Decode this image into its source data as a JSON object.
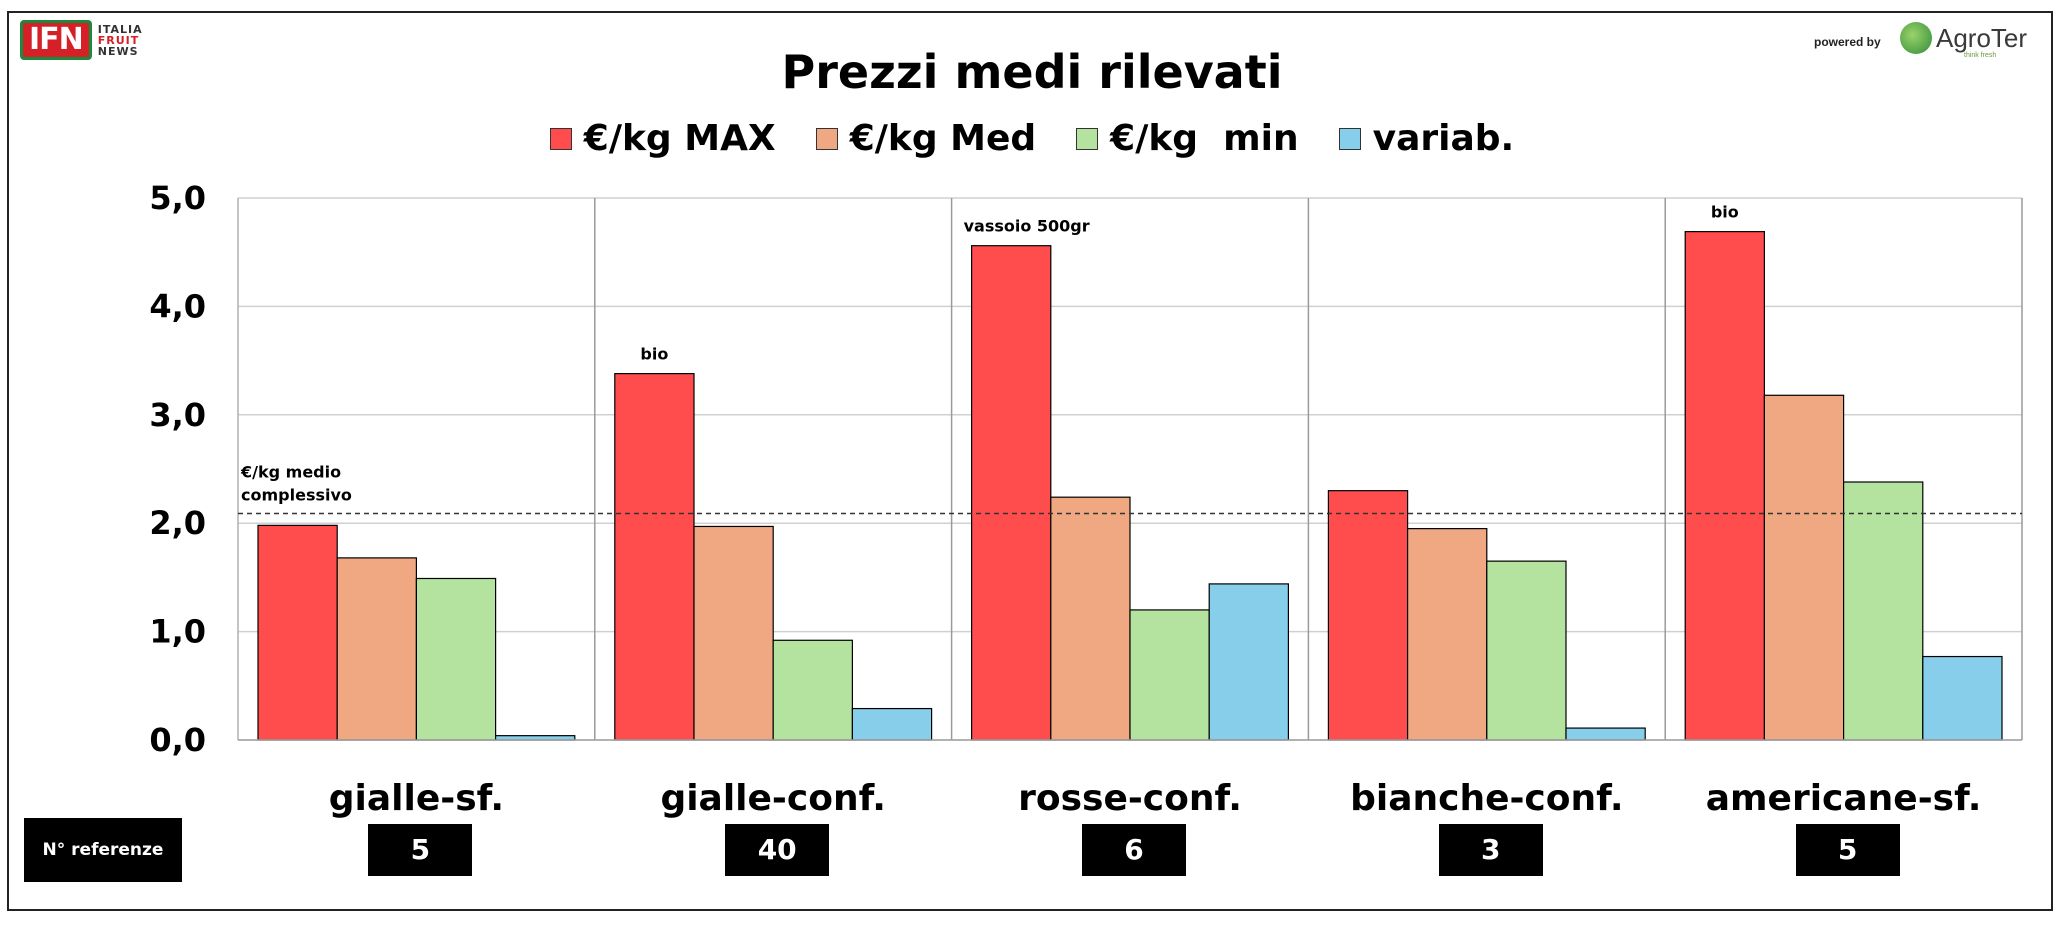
{
  "header": {
    "logo_ifn": "IFN",
    "logo_ifn_lines": [
      "ITALIA",
      "FRUIT",
      "NEWS"
    ],
    "powered_by": "powered by",
    "logo_agroter": "AgroTer",
    "logo_agroter_tagline": "think fresh"
  },
  "colors": {
    "max": "#ff4d4d",
    "med": "#f0a882",
    "min": "#b3e39e",
    "variab": "#87ceeb"
  },
  "chart_data": {
    "type": "bar",
    "title": "Prezzi medi rilevati",
    "legend_position": "top",
    "grid": true,
    "ylim": [
      0,
      5
    ],
    "yticks": [
      "0,0",
      "1,0",
      "2,0",
      "3,0",
      "4,0",
      "5,0"
    ],
    "categories": [
      "gialle-sf.",
      "gialle-conf.",
      "rosse-conf.",
      "bianche-conf.",
      "americane-sf."
    ],
    "series": [
      {
        "name": "€/kg MAX",
        "color_key": "max",
        "values": [
          1.98,
          3.38,
          4.56,
          2.3,
          4.69
        ]
      },
      {
        "name": "€/kg Med",
        "color_key": "med",
        "values": [
          1.68,
          1.97,
          2.24,
          1.95,
          3.18
        ]
      },
      {
        "name": "€/kg  min",
        "color_key": "min",
        "values": [
          1.49,
          0.92,
          1.2,
          1.65,
          2.38
        ]
      },
      {
        "name": "variab.",
        "color_key": "variab",
        "values": [
          0.04,
          0.29,
          1.44,
          0.11,
          0.77
        ]
      }
    ],
    "average_line": {
      "value": 2.09,
      "label_lines": [
        "€/kg medio",
        "complessivo"
      ]
    },
    "annotations": [
      {
        "category_index": 1,
        "text": "bio"
      },
      {
        "category_index": 2,
        "text": "vassoio 500gr"
      },
      {
        "category_index": 4,
        "text": "bio"
      }
    ],
    "references_label": "N° referenze",
    "references": [
      "5",
      "40",
      "6",
      "3",
      "5"
    ]
  }
}
